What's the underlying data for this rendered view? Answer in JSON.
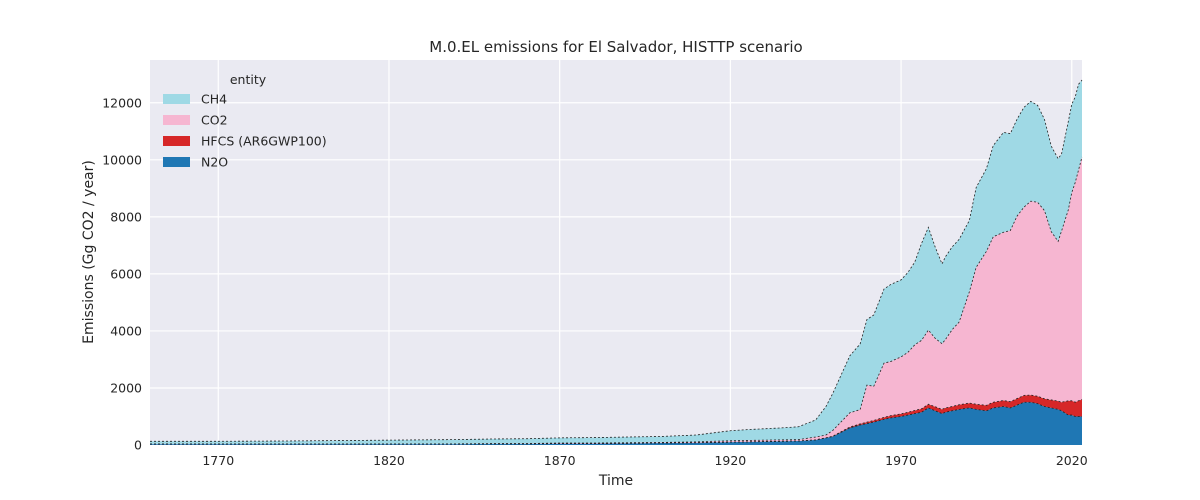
{
  "chart_data": {
    "type": "area",
    "stacked": true,
    "title": "M.0.EL emissions for El Salvador, HISTTP scenario",
    "xlabel": "Time",
    "ylabel": "Emissions (Gg CO2 / year)",
    "xlim": [
      1750,
      2023
    ],
    "ylim": [
      0,
      13500
    ],
    "xticks": [
      1770,
      1820,
      1870,
      1920,
      1970,
      2020
    ],
    "yticks": [
      0,
      2000,
      4000,
      6000,
      8000,
      10000,
      12000
    ],
    "grid": true,
    "legend": {
      "title": "entity",
      "position": "top-left"
    },
    "stack_order": [
      "N2O",
      "HFCS (AR6GWP100)",
      "CO2",
      "CH4"
    ],
    "x": [
      1750,
      1760,
      1770,
      1780,
      1790,
      1800,
      1810,
      1820,
      1830,
      1840,
      1850,
      1860,
      1870,
      1880,
      1890,
      1900,
      1910,
      1920,
      1925,
      1930,
      1935,
      1940,
      1945,
      1948,
      1950,
      1955,
      1958,
      1960,
      1962,
      1965,
      1967,
      1970,
      1972,
      1974,
      1976,
      1978,
      1980,
      1982,
      1983,
      1985,
      1987,
      1990,
      1992,
      1995,
      1997,
      2000,
      2002,
      2004,
      2006,
      2008,
      2010,
      2012,
      2014,
      2016,
      2017,
      2019,
      2020,
      2021,
      2022,
      2023
    ],
    "series": [
      {
        "name": "CH4",
        "color": "#9fd9e5",
        "values": [
          90,
          90,
          90,
          95,
          100,
          110,
          120,
          130,
          140,
          150,
          160,
          170,
          180,
          190,
          200,
          210,
          240,
          350,
          380,
          400,
          420,
          450,
          600,
          1000,
          1300,
          2000,
          2300,
          2300,
          2500,
          2600,
          2700,
          2700,
          2800,
          2900,
          3400,
          3600,
          3200,
          2800,
          2900,
          2900,
          2900,
          2500,
          2800,
          2900,
          3200,
          3500,
          3400,
          3400,
          3500,
          3500,
          3400,
          3200,
          3000,
          2900,
          2700,
          3100,
          3100,
          3000,
          3000,
          2700
        ]
      },
      {
        "name": "CO2",
        "color": "#f6b6d1",
        "values": [
          10,
          10,
          10,
          10,
          10,
          10,
          10,
          10,
          10,
          10,
          10,
          10,
          20,
          20,
          20,
          20,
          30,
          50,
          50,
          50,
          50,
          50,
          100,
          100,
          200,
          500,
          500,
          1300,
          1200,
          1900,
          1900,
          2000,
          2100,
          2300,
          2400,
          2600,
          2400,
          2300,
          2400,
          2700,
          2900,
          3900,
          4800,
          5400,
          5800,
          5900,
          6000,
          6400,
          6600,
          6800,
          6800,
          6600,
          5900,
          5600,
          6000,
          6700,
          7300,
          7700,
          8100,
          8500
        ]
      },
      {
        "name": "HFCS (AR6GWP100)",
        "color": "#d62728",
        "values": [
          0,
          0,
          0,
          0,
          0,
          0,
          0,
          0,
          0,
          0,
          0,
          0,
          0,
          0,
          0,
          0,
          0,
          0,
          0,
          0,
          0,
          0,
          0,
          0,
          10,
          30,
          40,
          50,
          60,
          70,
          80,
          90,
          100,
          110,
          120,
          130,
          140,
          150,
          150,
          150,
          160,
          170,
          180,
          190,
          200,
          210,
          220,
          230,
          240,
          250,
          260,
          270,
          280,
          290,
          300,
          500,
          500,
          500,
          550,
          600
        ]
      },
      {
        "name": "N2O",
        "color": "#1f77b4",
        "values": [
          30,
          30,
          30,
          30,
          30,
          30,
          30,
          30,
          30,
          30,
          40,
          40,
          50,
          50,
          60,
          70,
          80,
          100,
          110,
          120,
          130,
          140,
          180,
          250,
          300,
          600,
          700,
          750,
          800,
          900,
          950,
          1000,
          1050,
          1100,
          1150,
          1300,
          1200,
          1100,
          1150,
          1200,
          1250,
          1300,
          1250,
          1200,
          1300,
          1350,
          1300,
          1400,
          1500,
          1500,
          1450,
          1350,
          1300,
          1250,
          1200,
          1050,
          1050,
          1000,
          1000,
          1000
        ]
      }
    ]
  }
}
